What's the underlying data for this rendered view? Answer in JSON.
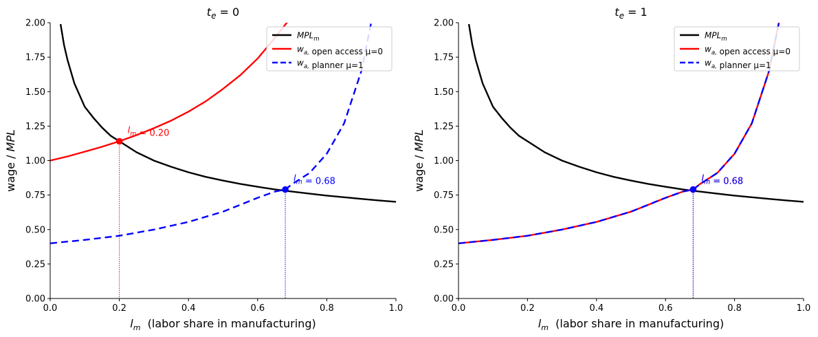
{
  "chart_data": [
    {
      "type": "line",
      "title": "t_e = 0",
      "xlabel": "l_m  (labor share in manufacturing)",
      "ylabel": "wage / MPL",
      "xlim": [
        0,
        1
      ],
      "ylim": [
        0,
        2
      ],
      "xticks": [
        "0.0",
        "0.2",
        "0.4",
        "0.6",
        "0.8",
        "1.0"
      ],
      "yticks": [
        "0.00",
        "0.25",
        "0.50",
        "0.75",
        "1.00",
        "1.25",
        "1.50",
        "1.75",
        "2.00"
      ],
      "legend_position": "top-right",
      "series": [
        {
          "name": "MPL_m",
          "color": "#000000",
          "style": "solid",
          "x": [
            0.03,
            0.04,
            0.05,
            0.07,
            0.1,
            0.125,
            0.15,
            0.175,
            0.2,
            0.25,
            0.3,
            0.35,
            0.4,
            0.45,
            0.5,
            0.55,
            0.6,
            0.65,
            0.7,
            0.75,
            0.8,
            0.85,
            0.9,
            0.95,
            1.0
          ],
          "y": [
            1.99,
            1.84,
            1.73,
            1.56,
            1.39,
            1.31,
            1.24,
            1.18,
            1.14,
            1.06,
            1.0,
            0.955,
            0.915,
            0.882,
            0.855,
            0.831,
            0.81,
            0.791,
            0.775,
            0.76,
            0.746,
            0.734,
            0.722,
            0.711,
            0.701
          ]
        },
        {
          "name": "w_a, open access μ=0",
          "color": "#ff0000",
          "style": "solid",
          "x": [
            0.0,
            0.05,
            0.1,
            0.15,
            0.2,
            0.25,
            0.3,
            0.35,
            0.4,
            0.45,
            0.5,
            0.55,
            0.6,
            0.65,
            0.7
          ],
          "y": [
            1.0,
            1.03,
            1.065,
            1.1,
            1.14,
            1.185,
            1.235,
            1.29,
            1.355,
            1.43,
            1.52,
            1.62,
            1.74,
            1.89,
            2.05
          ]
        },
        {
          "name": "w_a, planner μ=1",
          "color": "#0000ff",
          "style": "dashed",
          "x": [
            0.0,
            0.1,
            0.2,
            0.3,
            0.4,
            0.5,
            0.55,
            0.6,
            0.65,
            0.68,
            0.7,
            0.75,
            0.8,
            0.85,
            0.9,
            0.93
          ],
          "y": [
            0.4,
            0.425,
            0.455,
            0.5,
            0.555,
            0.63,
            0.68,
            0.73,
            0.775,
            0.79,
            0.83,
            0.91,
            1.05,
            1.27,
            1.65,
            2.02
          ]
        }
      ],
      "points": [
        {
          "x": 0.2,
          "y": 1.14,
          "color": "#ff0000",
          "label": "l_m = 0.20"
        },
        {
          "x": 0.68,
          "y": 0.79,
          "color": "#0000ff",
          "label": "l_m = 0.68"
        }
      ]
    },
    {
      "type": "line",
      "title": "t_e = 1",
      "xlabel": "l_m  (labor share in manufacturing)",
      "ylabel": "wage / MPL",
      "xlim": [
        0,
        1
      ],
      "ylim": [
        0,
        2
      ],
      "xticks": [
        "0.0",
        "0.2",
        "0.4",
        "0.6",
        "0.8",
        "1.0"
      ],
      "yticks": [
        "0.00",
        "0.25",
        "0.50",
        "0.75",
        "1.00",
        "1.25",
        "1.50",
        "1.75",
        "2.00"
      ],
      "legend_position": "top-right",
      "series": [
        {
          "name": "MPL_m",
          "color": "#000000",
          "style": "solid",
          "x": [
            0.03,
            0.04,
            0.05,
            0.07,
            0.1,
            0.125,
            0.15,
            0.175,
            0.2,
            0.25,
            0.3,
            0.35,
            0.4,
            0.45,
            0.5,
            0.55,
            0.6,
            0.65,
            0.7,
            0.75,
            0.8,
            0.85,
            0.9,
            0.95,
            1.0
          ],
          "y": [
            1.99,
            1.84,
            1.73,
            1.56,
            1.39,
            1.31,
            1.24,
            1.18,
            1.14,
            1.06,
            1.0,
            0.955,
            0.915,
            0.882,
            0.855,
            0.831,
            0.81,
            0.791,
            0.775,
            0.76,
            0.746,
            0.734,
            0.722,
            0.711,
            0.701
          ]
        },
        {
          "name": "w_a, open access μ=0",
          "color": "#ff0000",
          "style": "solid",
          "x": [
            0.0,
            0.1,
            0.2,
            0.3,
            0.4,
            0.5,
            0.55,
            0.6,
            0.65,
            0.68,
            0.7,
            0.75,
            0.8,
            0.85,
            0.9,
            0.93
          ],
          "y": [
            0.4,
            0.425,
            0.455,
            0.5,
            0.555,
            0.63,
            0.68,
            0.73,
            0.775,
            0.79,
            0.83,
            0.91,
            1.05,
            1.27,
            1.65,
            2.02
          ]
        },
        {
          "name": "w_a, planner μ=1",
          "color": "#0000ff",
          "style": "dashed",
          "x": [
            0.0,
            0.1,
            0.2,
            0.3,
            0.4,
            0.5,
            0.55,
            0.6,
            0.65,
            0.68,
            0.7,
            0.75,
            0.8,
            0.85,
            0.9,
            0.93
          ],
          "y": [
            0.4,
            0.425,
            0.455,
            0.5,
            0.555,
            0.63,
            0.68,
            0.73,
            0.775,
            0.79,
            0.83,
            0.91,
            1.05,
            1.27,
            1.65,
            2.02
          ]
        }
      ],
      "points": [
        {
          "x": 0.68,
          "y": 0.79,
          "color": "#ff0000",
          "label": "l_m = 0.68"
        },
        {
          "x": 0.68,
          "y": 0.79,
          "color": "#0000ff",
          "label": "l_m = 0.68"
        }
      ]
    }
  ]
}
